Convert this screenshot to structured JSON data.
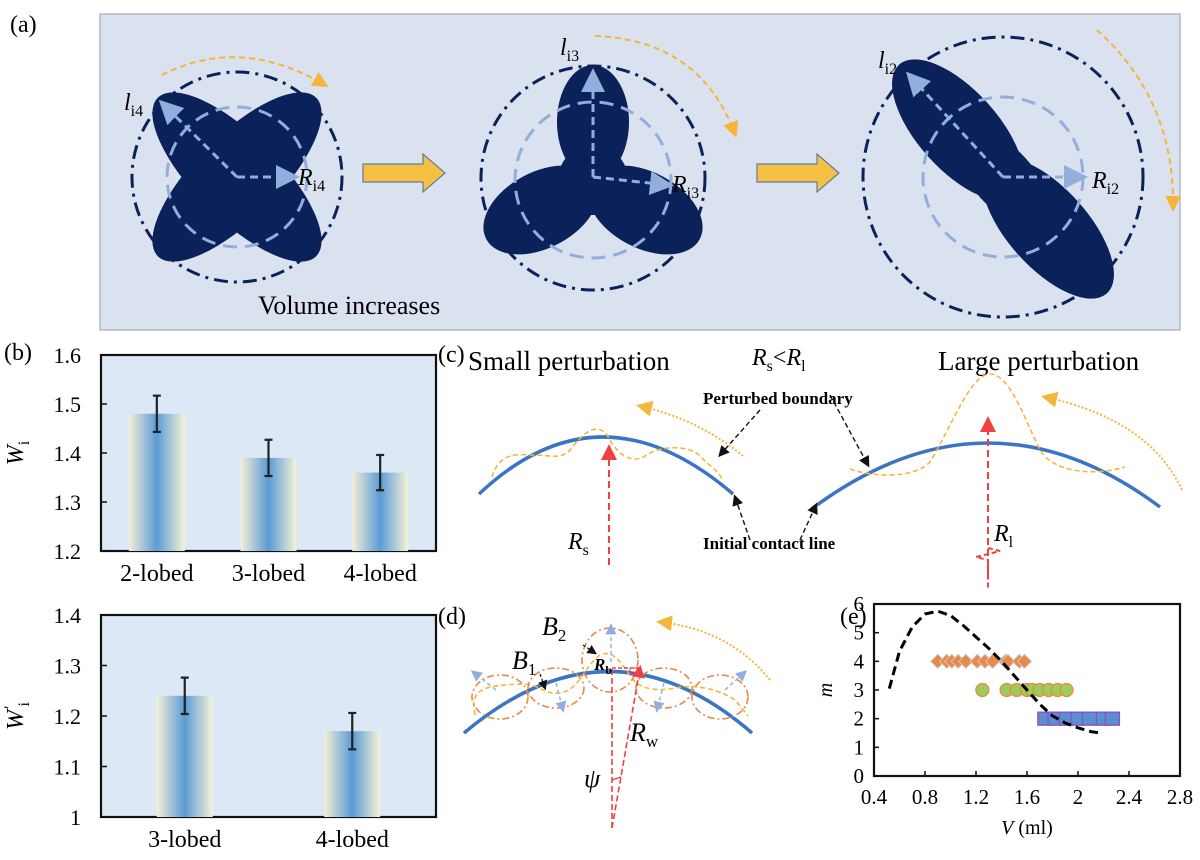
{
  "panel_a": {
    "label": "(a)",
    "caption": "Volume increases",
    "shapes": [
      {
        "name": "4-lobed",
        "l_label": "l",
        "l_sub": "i4",
        "R_label": "R",
        "R_sub": "i4"
      },
      {
        "name": "3-lobed",
        "l_label": "l",
        "l_sub": "i3",
        "R_label": "R",
        "R_sub": "i3"
      },
      {
        "name": "2-lobed",
        "l_label": "l",
        "l_sub": "i2",
        "R_label": "R",
        "R_sub": "i2"
      }
    ],
    "colors": {
      "background": "#dae2ef",
      "lobe": "#0b2159",
      "inner_circle": "#93aedc",
      "arrow": "#f6c142",
      "rotation_arrow": "#f4b63a"
    }
  },
  "panel_b": {
    "label": "(b)"
  },
  "panel_c": {
    "label": "(c)",
    "small_title": "Small perturbation",
    "large_title": "Large perturbation",
    "relation": {
      "a": "R",
      "a_sub": "s",
      "op": "<",
      "b": "R",
      "b_sub": "l"
    },
    "perturbed_label": "Perturbed boundary",
    "initial_label": "Initial contact line",
    "Rs": {
      "main": "R",
      "sub": "s"
    },
    "Rl": {
      "main": "R",
      "sub": "l"
    }
  },
  "panel_d": {
    "label": "(d)",
    "B1": {
      "main": "B",
      "sub": "1"
    },
    "B2": {
      "main": "B",
      "sub": "2"
    },
    "Rb": {
      "main": "R",
      "sub": "b"
    },
    "Rw": {
      "main": "R",
      "sub": "w"
    },
    "psi": "ψ"
  },
  "panel_e": {
    "label": "(e)"
  },
  "chart_data": [
    {
      "id": "b_top",
      "type": "bar",
      "categories": [
        "2-lobed",
        "3-lobed",
        "4-lobed"
      ],
      "values": [
        1.48,
        1.39,
        1.36
      ],
      "errors": [
        0.037,
        0.037,
        0.036
      ],
      "ylabel": "W",
      "ylabel_sub": "i",
      "ylim": [
        1.2,
        1.6
      ],
      "yticks": [
        1.2,
        1.3,
        1.4,
        1.5,
        1.6
      ],
      "ytick_labels": [
        "1.2",
        "1.3",
        "1.4",
        "1.5",
        "1.6"
      ],
      "grid": false
    },
    {
      "id": "b_bottom",
      "type": "bar",
      "categories": [
        "3-lobed",
        "4-lobed"
      ],
      "values": [
        1.24,
        1.17
      ],
      "errors": [
        0.036,
        0.036
      ],
      "ylabel": "W",
      "ylabel_sub": "i",
      "ylabel_prime": "'",
      "ylim": [
        1.0,
        1.4
      ],
      "yticks": [
        1.0,
        1.1,
        1.2,
        1.3,
        1.4
      ],
      "ytick_labels": [
        "1",
        "1.1",
        "1.2",
        "1.3",
        "1.4"
      ],
      "grid": false
    },
    {
      "id": "e",
      "type": "scatter",
      "xlabel": "V",
      "xlabel_unit": " (ml)",
      "ylabel": "m",
      "xlim": [
        0.4,
        2.8
      ],
      "ylim": [
        0,
        6
      ],
      "xticks": [
        0.4,
        0.8,
        1.2,
        1.6,
        2.0,
        2.4,
        2.8
      ],
      "xtick_labels": [
        "0.4",
        "0.8",
        "1.2",
        "1.6",
        "2",
        "2.4",
        "2.8"
      ],
      "yticks": [
        0,
        1,
        2,
        3,
        4,
        5,
        6
      ],
      "ytick_labels": [
        "0",
        "1",
        "2",
        "3",
        "4",
        "5",
        "6"
      ],
      "series": [
        {
          "name": "4-lobed",
          "marker": "diamond",
          "color": "#e8894a",
          "x": [
            0.9,
            0.97,
            1.01,
            1.06,
            1.12,
            1.21,
            1.27,
            1.33,
            1.43,
            1.45,
            1.54,
            1.58
          ],
          "y": [
            4,
            4,
            4,
            4,
            4,
            4,
            4,
            4,
            4,
            4,
            4,
            4
          ]
        },
        {
          "name": "3-lobed",
          "marker": "circle",
          "color": "#9ccc5a",
          "x": [
            1.25,
            1.44,
            1.52,
            1.6,
            1.64,
            1.7,
            1.77,
            1.84,
            1.91
          ],
          "y": [
            3,
            3,
            3,
            3,
            3,
            3,
            3,
            3,
            3
          ]
        },
        {
          "name": "2-lobed",
          "marker": "square",
          "color": "#5b8fd0",
          "x": [
            1.74,
            1.82,
            1.91,
            2.0,
            2.09,
            2.2,
            2.27
          ],
          "y": [
            2,
            2,
            2,
            2,
            2,
            2,
            2
          ]
        },
        {
          "name": "boundary",
          "marker": "dashed-line",
          "color": "#000000",
          "x": [
            0.52,
            0.6,
            0.7,
            0.8,
            0.9,
            1.0,
            1.1,
            1.2,
            1.3,
            1.4,
            1.5,
            1.6,
            1.7,
            1.8,
            1.9,
            2.0,
            2.1,
            2.18
          ],
          "y": [
            3.05,
            4.35,
            5.2,
            5.65,
            5.75,
            5.6,
            5.25,
            4.85,
            4.45,
            4.0,
            3.5,
            3.0,
            2.5,
            2.1,
            1.85,
            1.68,
            1.55,
            1.5
          ]
        }
      ]
    }
  ]
}
